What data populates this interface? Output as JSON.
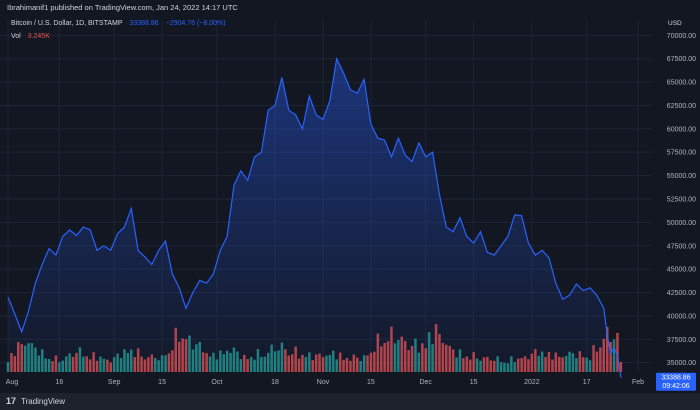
{
  "header": {
    "published": "Ibrahimanif1 published on TradingView.com, Jan 24, 2022 14:17 UTC",
    "symbol": "Bitcoin / U.S. Dollar, 1D, BITSTAMP",
    "last": "33388.86",
    "change": "−2904.76 (−8.00%)",
    "vol_label": "Vol",
    "vol_value": "3.245K",
    "currency": "USD"
  },
  "footer": {
    "logo": "17",
    "name": "TradingView"
  },
  "colors": {
    "background": "#131722",
    "line": "#2962ff",
    "up": "#26a69a",
    "down": "#ef5350",
    "badge": "#2962ff"
  },
  "chart_data": {
    "type": "area",
    "title": "Bitcoin / U.S. Dollar, 1D, BITSTAMP",
    "ylabel": "USD",
    "ylim": [
      34000,
      71000
    ],
    "yticks": [
      "70000.00",
      "67500.00",
      "65000.00",
      "62500.00",
      "60000.00",
      "57500.00",
      "55000.00",
      "52500.00",
      "50000.00",
      "47500.00",
      "45000.00",
      "42500.00",
      "40000.00",
      "37500.00",
      "35000.00"
    ],
    "ytick_values": [
      70000,
      67500,
      65000,
      62500,
      60000,
      57500,
      55000,
      52500,
      50000,
      47500,
      45000,
      42500,
      40000,
      37500,
      35000
    ],
    "xticks": [
      {
        "label": "Aug",
        "day": 0
      },
      {
        "label": "16",
        "day": 15
      },
      {
        "label": "Sep",
        "day": 31
      },
      {
        "label": "15",
        "day": 45
      },
      {
        "label": "Oct",
        "day": 61
      },
      {
        "label": "18",
        "day": 78
      },
      {
        "label": "Nov",
        "day": 92
      },
      {
        "label": "15",
        "day": 106
      },
      {
        "label": "Dec",
        "day": 122
      },
      {
        "label": "15",
        "day": 136
      },
      {
        "label": "2022",
        "day": 153
      },
      {
        "label": "17",
        "day": 169
      },
      {
        "label": "Feb",
        "day": 184
      }
    ],
    "last_price_label": "33388.86",
    "countdown_label": "09:42:06",
    "price_keypoints": [
      [
        0,
        42000
      ],
      [
        2,
        40200
      ],
      [
        4,
        38300
      ],
      [
        6,
        40500
      ],
      [
        8,
        43500
      ],
      [
        10,
        45500
      ],
      [
        12,
        47200
      ],
      [
        14,
        46500
      ],
      [
        16,
        48500
      ],
      [
        18,
        49200
      ],
      [
        20,
        48600
      ],
      [
        22,
        49500
      ],
      [
        24,
        49200
      ],
      [
        26,
        47000
      ],
      [
        28,
        47500
      ],
      [
        30,
        47000
      ],
      [
        32,
        48800
      ],
      [
        34,
        49500
      ],
      [
        36,
        51500
      ],
      [
        38,
        47000
      ],
      [
        40,
        46300
      ],
      [
        42,
        45500
      ],
      [
        44,
        47000
      ],
      [
        46,
        48000
      ],
      [
        48,
        44500
      ],
      [
        50,
        43000
      ],
      [
        52,
        40800
      ],
      [
        54,
        42500
      ],
      [
        56,
        43800
      ],
      [
        58,
        43500
      ],
      [
        60,
        44500
      ],
      [
        62,
        47000
      ],
      [
        64,
        48500
      ],
      [
        66,
        54000
      ],
      [
        68,
        55500
      ],
      [
        70,
        54500
      ],
      [
        72,
        57000
      ],
      [
        74,
        57500
      ],
      [
        76,
        62000
      ],
      [
        78,
        62500
      ],
      [
        80,
        65500
      ],
      [
        82,
        62000
      ],
      [
        84,
        61500
      ],
      [
        86,
        60000
      ],
      [
        88,
        63500
      ],
      [
        90,
        61500
      ],
      [
        92,
        61000
      ],
      [
        94,
        63000
      ],
      [
        96,
        67500
      ],
      [
        98,
        66000
      ],
      [
        100,
        64200
      ],
      [
        102,
        63800
      ],
      [
        104,
        65300
      ],
      [
        106,
        60500
      ],
      [
        108,
        59000
      ],
      [
        110,
        58800
      ],
      [
        112,
        57000
      ],
      [
        114,
        59000
      ],
      [
        116,
        57200
      ],
      [
        118,
        56500
      ],
      [
        120,
        58500
      ],
      [
        122,
        57000
      ],
      [
        124,
        57500
      ],
      [
        126,
        53000
      ],
      [
        128,
        49500
      ],
      [
        130,
        49000
      ],
      [
        132,
        50500
      ],
      [
        134,
        48500
      ],
      [
        136,
        47800
      ],
      [
        138,
        49000
      ],
      [
        140,
        46800
      ],
      [
        142,
        46500
      ],
      [
        144,
        47500
      ],
      [
        146,
        48500
      ],
      [
        148,
        50800
      ],
      [
        150,
        50700
      ],
      [
        152,
        47800
      ],
      [
        154,
        46500
      ],
      [
        156,
        47000
      ],
      [
        158,
        46200
      ],
      [
        160,
        43500
      ],
      [
        162,
        41800
      ],
      [
        164,
        42200
      ],
      [
        166,
        43400
      ],
      [
        168,
        42700
      ],
      [
        170,
        43000
      ],
      [
        172,
        42200
      ],
      [
        174,
        40800
      ],
      [
        175,
        38000
      ],
      [
        176,
        36000
      ],
      [
        177,
        36600
      ],
      [
        178,
        35800
      ],
      [
        179,
        33388
      ]
    ],
    "volume_keypoints": [
      [
        0,
        0.3
      ],
      [
        5,
        0.7
      ],
      [
        10,
        0.4
      ],
      [
        15,
        0.25
      ],
      [
        20,
        0.45
      ],
      [
        25,
        0.35
      ],
      [
        30,
        0.25
      ],
      [
        35,
        0.5
      ],
      [
        40,
        0.35
      ],
      [
        45,
        0.3
      ],
      [
        50,
        0.85
      ],
      [
        55,
        0.6
      ],
      [
        60,
        0.35
      ],
      [
        65,
        0.5
      ],
      [
        70,
        0.3
      ],
      [
        75,
        0.45
      ],
      [
        80,
        0.55
      ],
      [
        85,
        0.4
      ],
      [
        90,
        0.35
      ],
      [
        95,
        0.4
      ],
      [
        100,
        0.3
      ],
      [
        105,
        0.35
      ],
      [
        110,
        0.85
      ],
      [
        115,
        0.7
      ],
      [
        120,
        0.55
      ],
      [
        125,
        0.9
      ],
      [
        130,
        0.45
      ],
      [
        135,
        0.35
      ],
      [
        140,
        0.3
      ],
      [
        145,
        0.25
      ],
      [
        150,
        0.3
      ],
      [
        155,
        0.45
      ],
      [
        160,
        0.35
      ],
      [
        165,
        0.4
      ],
      [
        170,
        0.35
      ],
      [
        175,
        0.85
      ],
      [
        178,
        0.7
      ],
      [
        179,
        0.25
      ]
    ]
  }
}
